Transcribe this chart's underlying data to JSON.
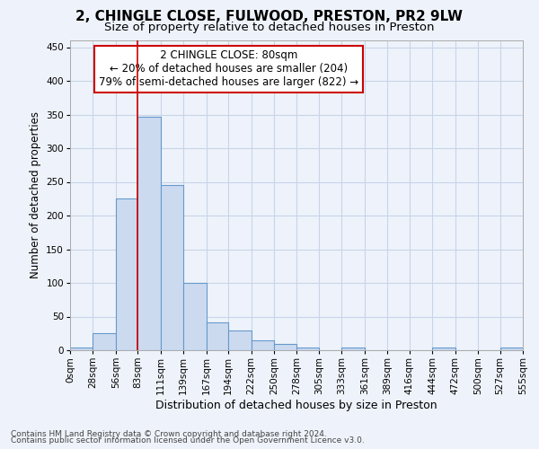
{
  "title_line1": "2, CHINGLE CLOSE, FULWOOD, PRESTON, PR2 9LW",
  "title_line2": "Size of property relative to detached houses in Preston",
  "xlabel": "Distribution of detached houses by size in Preston",
  "ylabel": "Number of detached properties",
  "annotation_line1": "2 CHINGLE CLOSE: 80sqm",
  "annotation_line2": "← 20% of detached houses are smaller (204)",
  "annotation_line3": "79% of semi-detached houses are larger (822) →",
  "footer_line1": "Contains HM Land Registry data © Crown copyright and database right 2024.",
  "footer_line2": "Contains public sector information licensed under the Open Government Licence v3.0.",
  "property_size_sqm": 80,
  "bin_edges": [
    0,
    28,
    56,
    83,
    111,
    139,
    167,
    194,
    222,
    250,
    278,
    305,
    333,
    361,
    389,
    416,
    444,
    472,
    500,
    527,
    555
  ],
  "bar_heights": [
    4,
    26,
    225,
    347,
    246,
    100,
    41,
    30,
    15,
    10,
    4,
    0,
    4,
    0,
    0,
    0,
    4,
    0,
    0,
    4
  ],
  "bar_color": "#ccdaf0",
  "bar_edge_color": "#6699cc",
  "vline_color": "#cc0000",
  "vline_x": 83,
  "annotation_box_color": "#cc0000",
  "annotation_box_fill": "white",
  "grid_color": "#c8d4e8",
  "background_color": "#eef3fb",
  "ylim": [
    0,
    460
  ],
  "yticks": [
    0,
    50,
    100,
    150,
    200,
    250,
    300,
    350,
    400,
    450
  ],
  "title1_fontsize": 11,
  "title2_fontsize": 9.5,
  "ylabel_fontsize": 8.5,
  "xlabel_fontsize": 9,
  "tick_fontsize": 7.5,
  "footer_fontsize": 6.5,
  "annotation_fontsize": 8.5
}
